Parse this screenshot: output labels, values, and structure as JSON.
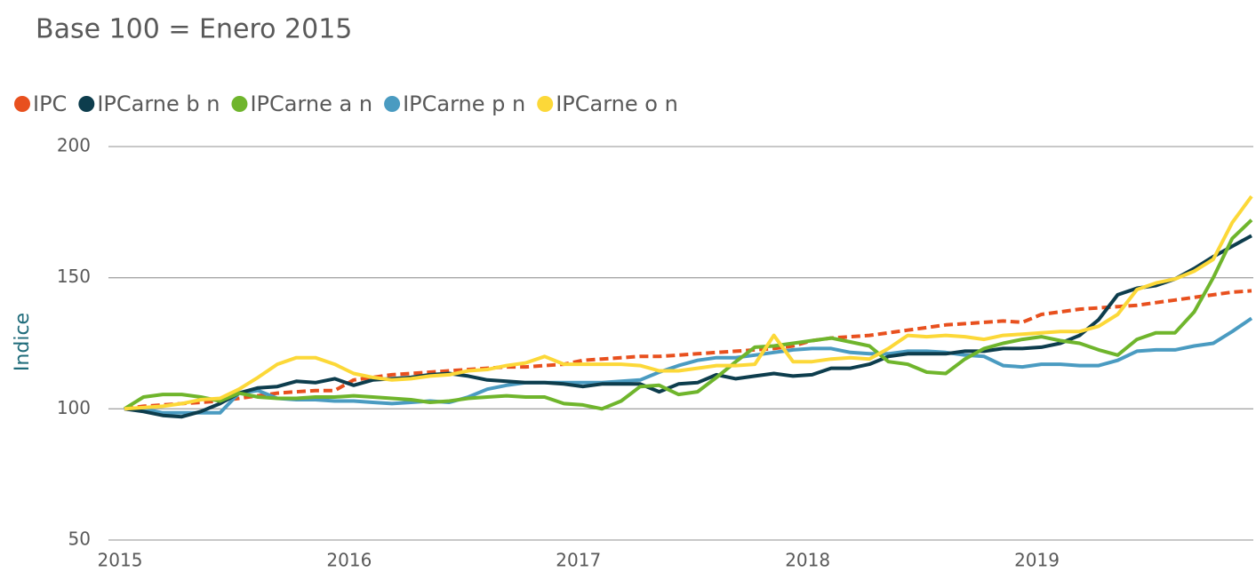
{
  "chart_data": {
    "type": "line",
    "title": "Base 100 = Enero 2015",
    "ylabel": "Indice",
    "legend": "top",
    "grid": true,
    "xlim": [
      2015,
      2019.917
    ],
    "xticks": [
      2015,
      2016,
      2017,
      2018,
      2019
    ],
    "ylim": [
      50,
      200
    ],
    "yticks": [
      50,
      100,
      150,
      200
    ],
    "x": [
      2015,
      2015.083,
      2015.167,
      2015.25,
      2015.333,
      2015.417,
      2015.5,
      2015.583,
      2015.667,
      2015.75,
      2015.833,
      2015.917,
      2016,
      2016.083,
      2016.167,
      2016.25,
      2016.333,
      2016.417,
      2016.5,
      2016.583,
      2016.667,
      2016.75,
      2016.833,
      2016.917,
      2017,
      2017.083,
      2017.167,
      2017.25,
      2017.333,
      2017.417,
      2017.5,
      2017.583,
      2017.667,
      2017.75,
      2017.833,
      2017.917,
      2018,
      2018.083,
      2018.167,
      2018.25,
      2018.333,
      2018.417,
      2018.5,
      2018.583,
      2018.667,
      2018.75,
      2018.833,
      2018.917,
      2019,
      2019.083,
      2019.167,
      2019.25,
      2019.333,
      2019.417,
      2019.5,
      2019.583,
      2019.667,
      2019.75,
      2019.833,
      2019.917
    ],
    "series": [
      {
        "name": "IPC",
        "color": "#e8501e",
        "style": "dashed",
        "values": [
          100,
          101,
          101.5,
          102,
          102.5,
          103,
          104,
          105,
          106,
          106.5,
          107,
          107,
          111,
          112,
          113,
          113.5,
          114,
          114.5,
          115,
          115.5,
          116,
          116,
          116.5,
          117,
          118.5,
          119,
          119.5,
          120,
          120,
          120.5,
          121,
          121.5,
          122,
          122.5,
          123,
          124,
          126,
          127,
          127.5,
          128,
          129,
          130,
          131,
          132,
          132.5,
          133,
          133.5,
          133,
          136,
          137,
          138,
          138.5,
          139,
          139.5,
          140.5,
          141.5,
          142.5,
          143.5,
          144.5,
          145
        ]
      },
      {
        "name": "IPCarne b n",
        "color": "#0d3d4d",
        "values": [
          100,
          99,
          97.5,
          97,
          99,
          102,
          106,
          108,
          108.5,
          110.5,
          110,
          111.5,
          109,
          111,
          111.5,
          112,
          113,
          113.5,
          112.5,
          111,
          110.5,
          110,
          110,
          109.5,
          108.5,
          109.5,
          109.5,
          109.5,
          106.5,
          109.5,
          110,
          113,
          111.5,
          112.5,
          113.5,
          112.5,
          113,
          115.5,
          115.5,
          117,
          120,
          121,
          121,
          121,
          122,
          122,
          123,
          123,
          123.5,
          125,
          128,
          134,
          143.5,
          146,
          147,
          149.5,
          153.5,
          158,
          162,
          166
        ]
      },
      {
        "name": "IPCarne a n",
        "color": "#6fb52c",
        "values": [
          100,
          104.5,
          105.5,
          105.5,
          104.5,
          103,
          106,
          104.5,
          104,
          104,
          104.5,
          104.5,
          105,
          104.5,
          104,
          103.5,
          102.5,
          103,
          104,
          104.5,
          105,
          104.5,
          104.5,
          102,
          101.5,
          100,
          103,
          108.5,
          109,
          105.5,
          106.5,
          112,
          118,
          123.5,
          124,
          125,
          126,
          127,
          125.5,
          124,
          118,
          117,
          114,
          113.5,
          119,
          123,
          125,
          126.5,
          127.5,
          126,
          125,
          122.5,
          120.5,
          126.5,
          129,
          129,
          137,
          150,
          165,
          172
        ]
      },
      {
        "name": "IPCarne p n",
        "color": "#4a9bc1",
        "values": [
          100,
          100,
          98.5,
          98.5,
          98.5,
          98.5,
          106,
          107,
          104,
          103.5,
          103.5,
          103,
          103,
          102.5,
          102,
          102.5,
          103,
          102.5,
          104.5,
          107.5,
          109,
          110,
          110,
          110,
          110,
          110,
          110.5,
          111,
          114,
          116.5,
          118.5,
          119.5,
          119.5,
          120.5,
          121.5,
          122.5,
          123,
          123,
          121.5,
          121,
          121,
          122,
          122,
          121.5,
          120.5,
          120,
          116.5,
          116,
          117,
          117,
          116.5,
          116.5,
          118.5,
          122,
          122.5,
          122.5,
          124,
          125,
          129.5,
          134.5
        ]
      },
      {
        "name": "IPCarne o n",
        "color": "#fcd838",
        "values": [
          100,
          100.5,
          101,
          102,
          103.5,
          104,
          107.5,
          112,
          117,
          119.5,
          119.5,
          117,
          113.5,
          112,
          111,
          111.5,
          112.5,
          113,
          114.5,
          115,
          116.5,
          117.5,
          120,
          117,
          117,
          117,
          117,
          116.5,
          114.5,
          114.5,
          115.5,
          116.5,
          116.5,
          117,
          128,
          118,
          118,
          119,
          119.5,
          119,
          123,
          128,
          127.5,
          128,
          127.5,
          126.5,
          128,
          128.5,
          129,
          129.5,
          129.5,
          131.5,
          136,
          145.5,
          148,
          149.5,
          152.5,
          157,
          171,
          181
        ]
      }
    ]
  }
}
